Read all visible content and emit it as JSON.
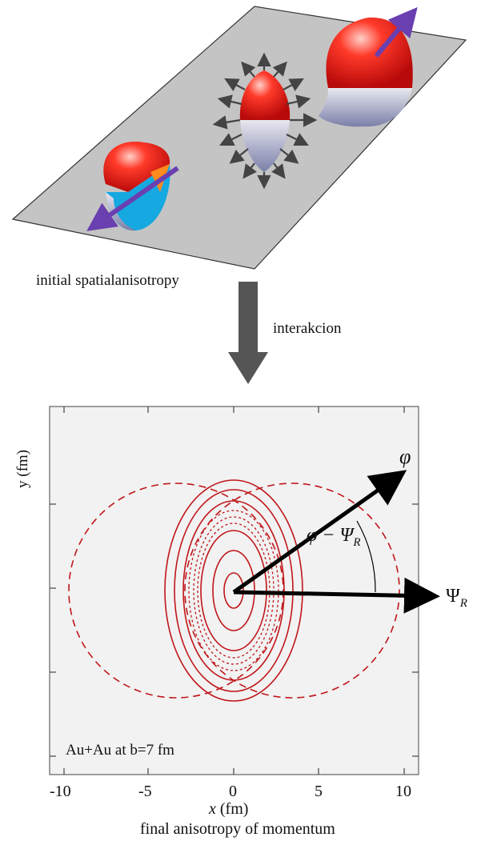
{
  "top": {
    "caption": "initial spatialanisotropy",
    "step_label": "interakcion"
  },
  "plot": {
    "ylabel": "y (fm)",
    "xlabel_var": "x",
    "xlabel_unit": " (fm)",
    "note": "Au+Au  at b=7 fm",
    "x_ticks": [
      "-10",
      "-5",
      "0",
      "5",
      "10"
    ],
    "phi_symbol": "φ",
    "diff_label": "φ − Ψ",
    "psi_label": "Ψ",
    "subscript": "R",
    "caption": "final anisotropy of momentum"
  },
  "colors": {
    "panel_bg": "#f2f2f2",
    "contour": "#c0161a",
    "plane": "#bfbfbf",
    "arrow": "#555555",
    "purple": "#6a3fb0"
  }
}
